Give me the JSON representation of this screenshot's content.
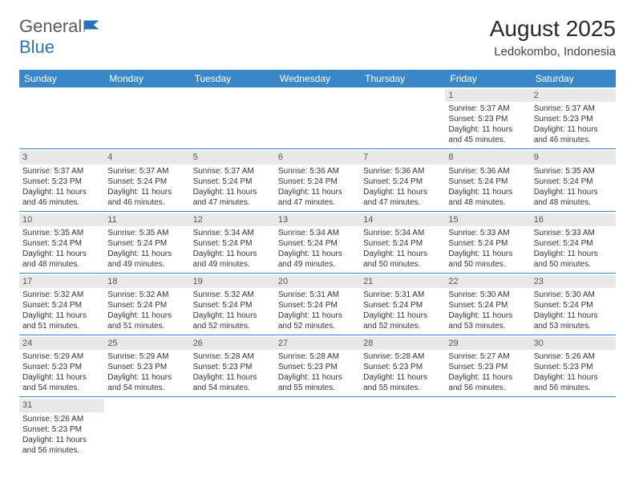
{
  "logo": {
    "name1": "General",
    "name2": "Blue"
  },
  "title": "August 2025",
  "location": "Ledokombo, Indonesia",
  "colors": {
    "header_bg": "#3a87c8",
    "header_text": "#ffffff",
    "row_divider": "#3a87c8",
    "daynum_bg": "#e8e8e8",
    "logo_gray": "#5a5a5a",
    "logo_blue": "#2a72b5"
  },
  "weekdays": [
    "Sunday",
    "Monday",
    "Tuesday",
    "Wednesday",
    "Thursday",
    "Friday",
    "Saturday"
  ],
  "weeks": [
    [
      null,
      null,
      null,
      null,
      null,
      {
        "n": "1",
        "sr": "Sunrise: 5:37 AM",
        "ss": "Sunset: 5:23 PM",
        "dl": "Daylight: 11 hours and 45 minutes."
      },
      {
        "n": "2",
        "sr": "Sunrise: 5:37 AM",
        "ss": "Sunset: 5:23 PM",
        "dl": "Daylight: 11 hours and 46 minutes."
      }
    ],
    [
      {
        "n": "3",
        "sr": "Sunrise: 5:37 AM",
        "ss": "Sunset: 5:23 PM",
        "dl": "Daylight: 11 hours and 46 minutes."
      },
      {
        "n": "4",
        "sr": "Sunrise: 5:37 AM",
        "ss": "Sunset: 5:24 PM",
        "dl": "Daylight: 11 hours and 46 minutes."
      },
      {
        "n": "5",
        "sr": "Sunrise: 5:37 AM",
        "ss": "Sunset: 5:24 PM",
        "dl": "Daylight: 11 hours and 47 minutes."
      },
      {
        "n": "6",
        "sr": "Sunrise: 5:36 AM",
        "ss": "Sunset: 5:24 PM",
        "dl": "Daylight: 11 hours and 47 minutes."
      },
      {
        "n": "7",
        "sr": "Sunrise: 5:36 AM",
        "ss": "Sunset: 5:24 PM",
        "dl": "Daylight: 11 hours and 47 minutes."
      },
      {
        "n": "8",
        "sr": "Sunrise: 5:36 AM",
        "ss": "Sunset: 5:24 PM",
        "dl": "Daylight: 11 hours and 48 minutes."
      },
      {
        "n": "9",
        "sr": "Sunrise: 5:35 AM",
        "ss": "Sunset: 5:24 PM",
        "dl": "Daylight: 11 hours and 48 minutes."
      }
    ],
    [
      {
        "n": "10",
        "sr": "Sunrise: 5:35 AM",
        "ss": "Sunset: 5:24 PM",
        "dl": "Daylight: 11 hours and 48 minutes."
      },
      {
        "n": "11",
        "sr": "Sunrise: 5:35 AM",
        "ss": "Sunset: 5:24 PM",
        "dl": "Daylight: 11 hours and 49 minutes."
      },
      {
        "n": "12",
        "sr": "Sunrise: 5:34 AM",
        "ss": "Sunset: 5:24 PM",
        "dl": "Daylight: 11 hours and 49 minutes."
      },
      {
        "n": "13",
        "sr": "Sunrise: 5:34 AM",
        "ss": "Sunset: 5:24 PM",
        "dl": "Daylight: 11 hours and 49 minutes."
      },
      {
        "n": "14",
        "sr": "Sunrise: 5:34 AM",
        "ss": "Sunset: 5:24 PM",
        "dl": "Daylight: 11 hours and 50 minutes."
      },
      {
        "n": "15",
        "sr": "Sunrise: 5:33 AM",
        "ss": "Sunset: 5:24 PM",
        "dl": "Daylight: 11 hours and 50 minutes."
      },
      {
        "n": "16",
        "sr": "Sunrise: 5:33 AM",
        "ss": "Sunset: 5:24 PM",
        "dl": "Daylight: 11 hours and 50 minutes."
      }
    ],
    [
      {
        "n": "17",
        "sr": "Sunrise: 5:32 AM",
        "ss": "Sunset: 5:24 PM",
        "dl": "Daylight: 11 hours and 51 minutes."
      },
      {
        "n": "18",
        "sr": "Sunrise: 5:32 AM",
        "ss": "Sunset: 5:24 PM",
        "dl": "Daylight: 11 hours and 51 minutes."
      },
      {
        "n": "19",
        "sr": "Sunrise: 5:32 AM",
        "ss": "Sunset: 5:24 PM",
        "dl": "Daylight: 11 hours and 52 minutes."
      },
      {
        "n": "20",
        "sr": "Sunrise: 5:31 AM",
        "ss": "Sunset: 5:24 PM",
        "dl": "Daylight: 11 hours and 52 minutes."
      },
      {
        "n": "21",
        "sr": "Sunrise: 5:31 AM",
        "ss": "Sunset: 5:24 PM",
        "dl": "Daylight: 11 hours and 52 minutes."
      },
      {
        "n": "22",
        "sr": "Sunrise: 5:30 AM",
        "ss": "Sunset: 5:24 PM",
        "dl": "Daylight: 11 hours and 53 minutes."
      },
      {
        "n": "23",
        "sr": "Sunrise: 5:30 AM",
        "ss": "Sunset: 5:24 PM",
        "dl": "Daylight: 11 hours and 53 minutes."
      }
    ],
    [
      {
        "n": "24",
        "sr": "Sunrise: 5:29 AM",
        "ss": "Sunset: 5:23 PM",
        "dl": "Daylight: 11 hours and 54 minutes."
      },
      {
        "n": "25",
        "sr": "Sunrise: 5:29 AM",
        "ss": "Sunset: 5:23 PM",
        "dl": "Daylight: 11 hours and 54 minutes."
      },
      {
        "n": "26",
        "sr": "Sunrise: 5:28 AM",
        "ss": "Sunset: 5:23 PM",
        "dl": "Daylight: 11 hours and 54 minutes."
      },
      {
        "n": "27",
        "sr": "Sunrise: 5:28 AM",
        "ss": "Sunset: 5:23 PM",
        "dl": "Daylight: 11 hours and 55 minutes."
      },
      {
        "n": "28",
        "sr": "Sunrise: 5:28 AM",
        "ss": "Sunset: 5:23 PM",
        "dl": "Daylight: 11 hours and 55 minutes."
      },
      {
        "n": "29",
        "sr": "Sunrise: 5:27 AM",
        "ss": "Sunset: 5:23 PM",
        "dl": "Daylight: 11 hours and 56 minutes."
      },
      {
        "n": "30",
        "sr": "Sunrise: 5:26 AM",
        "ss": "Sunset: 5:23 PM",
        "dl": "Daylight: 11 hours and 56 minutes."
      }
    ],
    [
      {
        "n": "31",
        "sr": "Sunrise: 5:26 AM",
        "ss": "Sunset: 5:23 PM",
        "dl": "Daylight: 11 hours and 56 minutes."
      },
      null,
      null,
      null,
      null,
      null,
      null
    ]
  ]
}
